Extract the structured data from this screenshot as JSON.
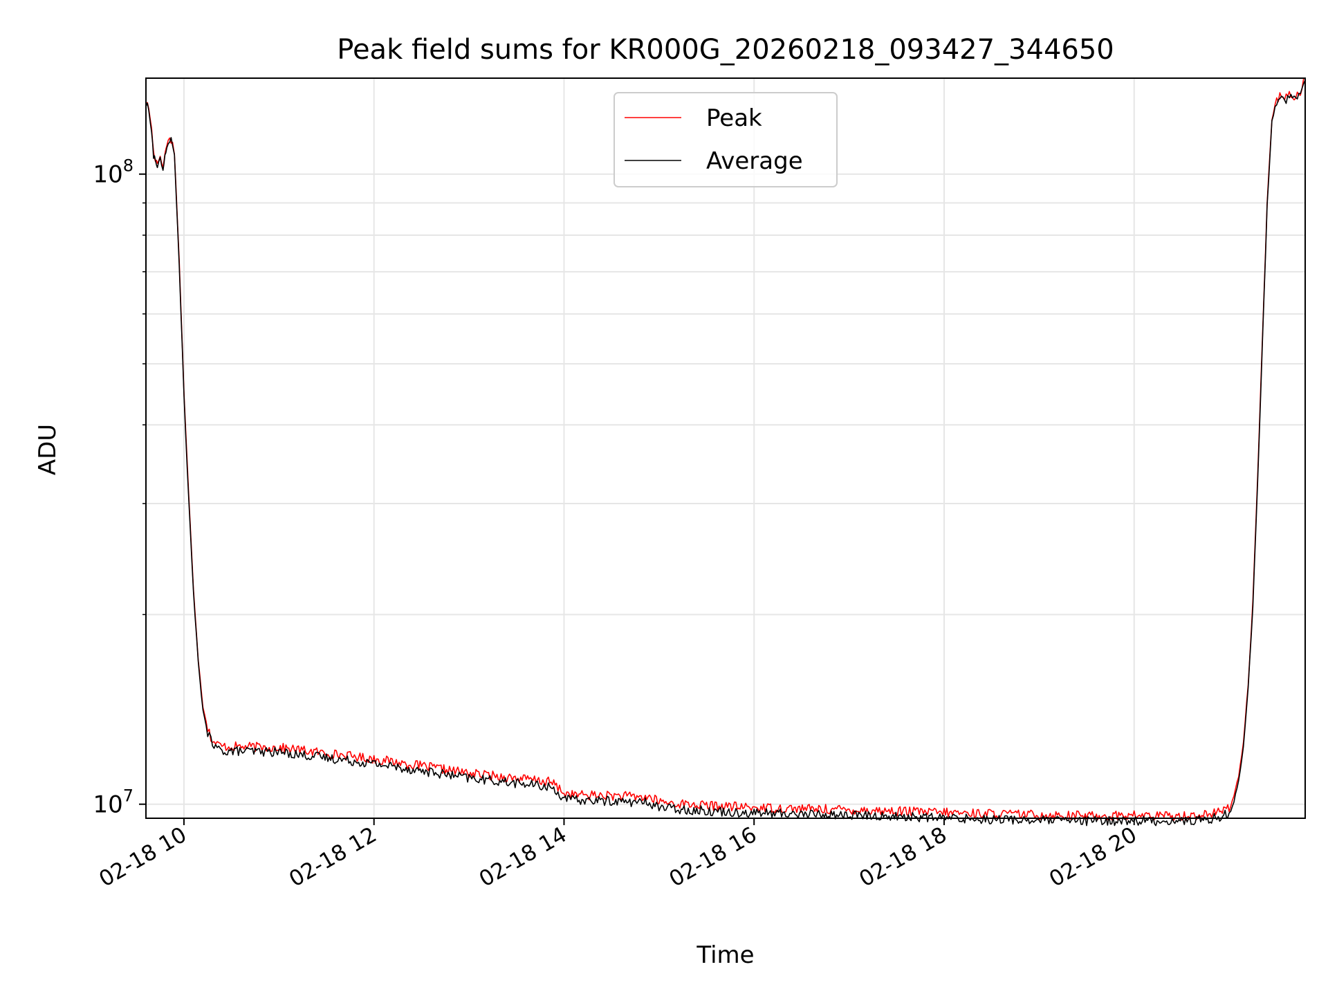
{
  "chart_data": {
    "type": "line",
    "title": "Peak field sums for KR000G_20260218_093427_344650",
    "xlabel": "Time",
    "ylabel": "ADU",
    "yscale": "log",
    "xlim": [
      9.6,
      21.8
    ],
    "ylim": [
      9500000.0,
      142000000.0
    ],
    "grid": true,
    "legend_position": "top-center",
    "x_ticks": [
      {
        "value": 10,
        "label": "02-18 10"
      },
      {
        "value": 12,
        "label": "02-18 12"
      },
      {
        "value": 14,
        "label": "02-18 14"
      },
      {
        "value": 16,
        "label": "02-18 16"
      },
      {
        "value": 18,
        "label": "02-18 18"
      },
      {
        "value": 20,
        "label": "02-18 20"
      }
    ],
    "y_ticks": [
      {
        "value": 10000000,
        "base": "10",
        "exp": "7"
      },
      {
        "value": 100000000,
        "base": "10",
        "exp": "8"
      }
    ],
    "series": [
      {
        "name": "Peak",
        "color": "#ff0000",
        "x": [
          9.6,
          9.63,
          9.66,
          9.68,
          9.7,
          9.72,
          9.75,
          9.78,
          9.8,
          9.82,
          9.85,
          9.88,
          9.9,
          9.95,
          10.0,
          10.05,
          10.1,
          10.15,
          10.2,
          10.25,
          10.3,
          10.35,
          10.4,
          10.5,
          11.0,
          11.5,
          12.0,
          12.5,
          13.0,
          13.5,
          13.85,
          13.92,
          14.0,
          14.1,
          14.5,
          14.9,
          15.0,
          15.1,
          15.5,
          16.0,
          17.0,
          18.0,
          19.0,
          19.5,
          20.0,
          20.3,
          20.6,
          20.8,
          20.9,
          21.0,
          21.05,
          21.1,
          21.15,
          21.2,
          21.25,
          21.3,
          21.35,
          21.4,
          21.45,
          21.5,
          21.55,
          21.6,
          21.65,
          21.7,
          21.75,
          21.8
        ],
        "values": [
          130000000,
          127000000,
          118000000,
          108000000,
          106000000,
          104000000,
          107000000,
          102000000,
          108000000,
          111000000,
          115000000,
          112000000,
          108000000,
          73000000,
          45000000,
          31000000,
          22000000,
          17000000,
          14300000,
          13200000,
          12600000,
          12450000,
          12350000,
          12350000,
          12300000,
          12050000,
          11800000,
          11500000,
          11200000,
          11000000,
          10850000,
          10700000,
          10400000,
          10350000,
          10320000,
          10250000,
          10100000,
          10050000,
          9950000,
          9880000,
          9800000,
          9700000,
          9620000,
          9590000,
          9600000,
          9580000,
          9590000,
          9650000,
          9720000,
          9900000,
          10300000,
          11100000,
          12500000,
          15500000,
          21000000,
          33000000,
          55000000,
          90000000,
          122000000,
          132000000,
          133000000,
          132000000,
          134000000,
          133000000,
          135000000,
          142000000
        ]
      },
      {
        "name": "Average",
        "color": "#000000",
        "x": [
          9.6,
          9.63,
          9.66,
          9.68,
          9.7,
          9.72,
          9.75,
          9.78,
          9.8,
          9.82,
          9.85,
          9.88,
          9.9,
          9.95,
          10.0,
          10.05,
          10.1,
          10.15,
          10.2,
          10.25,
          10.3,
          10.35,
          10.4,
          10.5,
          11.0,
          11.5,
          12.0,
          12.5,
          13.0,
          13.5,
          13.85,
          13.92,
          14.0,
          14.1,
          14.5,
          14.9,
          15.0,
          15.1,
          15.5,
          16.0,
          17.0,
          18.0,
          19.0,
          19.5,
          20.0,
          20.3,
          20.6,
          20.8,
          20.9,
          21.0,
          21.05,
          21.1,
          21.15,
          21.2,
          21.25,
          21.3,
          21.35,
          21.4,
          21.45,
          21.5,
          21.55,
          21.6,
          21.65,
          21.7,
          21.75,
          21.8
        ],
        "values": [
          129000000,
          126000000,
          117000000,
          107000000,
          105000000,
          103000000,
          106000000,
          101000000,
          107000000,
          110000000,
          114000000,
          111000000,
          107000000,
          72000000,
          44500000,
          30500000,
          21700000,
          16800000,
          14100000,
          13000000,
          12400000,
          12250000,
          12150000,
          12150000,
          12100000,
          11850000,
          11600000,
          11300000,
          11000000,
          10800000,
          10650000,
          10500000,
          10200000,
          10150000,
          10120000,
          10050000,
          9900000,
          9850000,
          9760000,
          9690000,
          9610000,
          9510000,
          9430000,
          9400000,
          9420000,
          9400000,
          9410000,
          9470000,
          9540000,
          9720000,
          10100000,
          10900000,
          12300000,
          15300000,
          20700000,
          32500000,
          54000000,
          89000000,
          121000000,
          131000000,
          132000000,
          131000000,
          133000000,
          132000000,
          134000000,
          141000000
        ]
      }
    ]
  }
}
